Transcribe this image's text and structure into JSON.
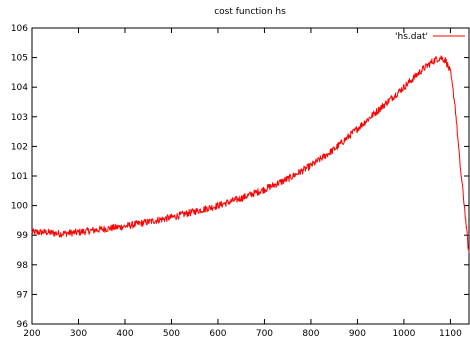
{
  "chart_data": {
    "type": "line",
    "title": "cost function hs",
    "xlabel": "",
    "ylabel": "",
    "xlim": [
      200,
      1140
    ],
    "ylim": [
      96,
      106
    ],
    "xticks": [
      200,
      300,
      400,
      500,
      600,
      700,
      800,
      900,
      1000,
      1100
    ],
    "yticks": [
      96,
      97,
      98,
      99,
      100,
      101,
      102,
      103,
      104,
      105,
      106
    ],
    "grid": false,
    "legend_position": "top-right",
    "series": [
      {
        "name": "'hs.dat'",
        "color": "#ff0000",
        "noise_amplitude": 0.12,
        "x": [
          200,
          230,
          260,
          300,
          350,
          400,
          450,
          500,
          550,
          600,
          650,
          700,
          750,
          800,
          850,
          900,
          950,
          1000,
          1040,
          1060,
          1070,
          1080,
          1090,
          1100,
          1110,
          1120,
          1130,
          1140
        ],
        "y": [
          99.1,
          99.1,
          99.05,
          99.1,
          99.2,
          99.3,
          99.45,
          99.6,
          99.8,
          100.0,
          100.25,
          100.55,
          100.9,
          101.35,
          101.9,
          102.6,
          103.3,
          104.0,
          104.6,
          104.85,
          104.95,
          105.0,
          104.9,
          104.5,
          103.4,
          101.5,
          100.0,
          98.3
        ]
      }
    ]
  }
}
